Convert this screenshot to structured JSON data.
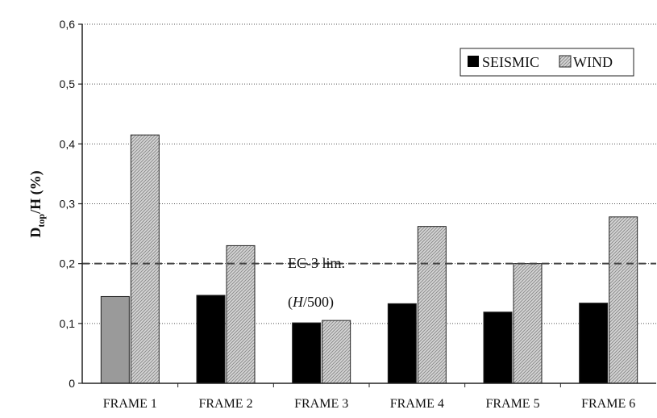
{
  "chart_data": {
    "type": "bar",
    "categories": [
      "FRAME 1",
      "FRAME 2",
      "FRAME 3",
      "FRAME 4",
      "FRAME 5",
      "FRAME 6"
    ],
    "series": [
      {
        "name": "SEISMIC",
        "values": [
          0.145,
          0.147,
          0.101,
          0.133,
          0.119,
          0.134
        ],
        "color": "#000000"
      },
      {
        "name": "WIND",
        "values": [
          0.415,
          0.23,
          0.105,
          0.262,
          0.2,
          0.278
        ],
        "color": "#c8c8c8"
      }
    ],
    "first_seismic_bar_color": "#9a9a9a",
    "ylabel": {
      "main": "D",
      "sub": "top",
      "rest": "/H  (%)"
    },
    "ylim": [
      0,
      0.6
    ],
    "yticks": [
      {
        "value": 0,
        "label": "0"
      },
      {
        "value": 0.1,
        "label": "0,1"
      },
      {
        "value": 0.2,
        "label": "0,2"
      },
      {
        "value": 0.3,
        "label": "0,3"
      },
      {
        "value": 0.4,
        "label": "0,4"
      },
      {
        "value": 0.5,
        "label": "0,5"
      },
      {
        "value": 0.6,
        "label": "0,6"
      }
    ],
    "grid": true,
    "legend_position": "top-right",
    "reference_line": {
      "value": 0.2,
      "style": "dashed"
    },
    "annotation": {
      "line1": "EC-3 lim.",
      "line2_open": "(",
      "line2_italic": "H",
      "line2_rest": "/500)"
    }
  }
}
